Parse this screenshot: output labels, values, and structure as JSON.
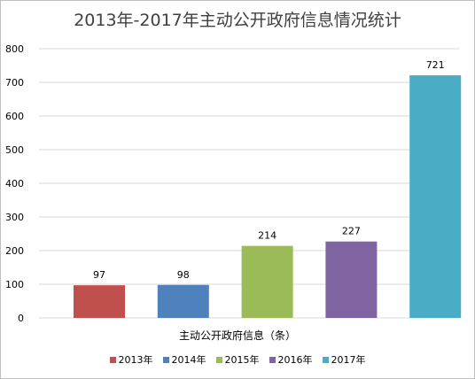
{
  "chart_data": {
    "type": "bar",
    "title": "2013年-2017年主动公开政府信息情况统计",
    "xlabel": "主动公开政府信息（条）",
    "ylabel": "",
    "categories": [
      "2013年",
      "2014年",
      "2015年",
      "2016年",
      "2017年"
    ],
    "values": [
      97,
      98,
      214,
      227,
      721
    ],
    "colors": [
      "#c0504d",
      "#4f81bd",
      "#9bbb59",
      "#8064a2",
      "#4bacc6"
    ],
    "ylim": [
      0,
      800
    ],
    "yticks": [
      0,
      100,
      200,
      300,
      400,
      500,
      600,
      700,
      800
    ],
    "grid": true,
    "legend": "bottom",
    "data_labels": true
  }
}
